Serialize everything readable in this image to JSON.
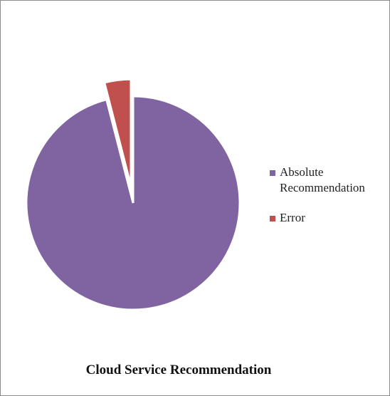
{
  "chart_data": {
    "type": "pie",
    "title": "Cloud Service Recommendation",
    "categories": [
      "Absolute Recommendation",
      "Error"
    ],
    "values": [
      96,
      4
    ],
    "colors": [
      "#8064a2",
      "#c0504d"
    ],
    "exploded": [
      false,
      true
    ],
    "legend": "right"
  }
}
